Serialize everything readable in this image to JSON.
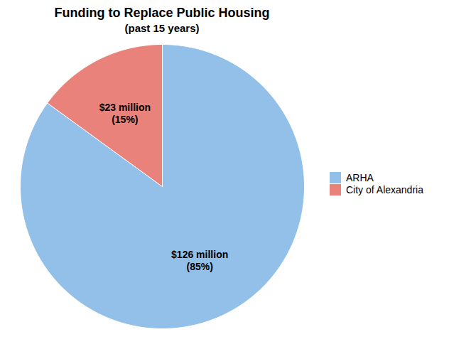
{
  "chart_data": {
    "type": "pie",
    "title": "Funding to Replace Public Housing",
    "subtitle": "(past 15 years)",
    "categories": [
      "ARHA",
      "City of Alexandria"
    ],
    "values": [
      85,
      15
    ],
    "value_labels": [
      "$126 million\n(85%)",
      "$23 million\n(15%)"
    ],
    "colors": [
      "#92C0E8",
      "#E8827A"
    ],
    "data_labels": true,
    "legend": "right"
  }
}
